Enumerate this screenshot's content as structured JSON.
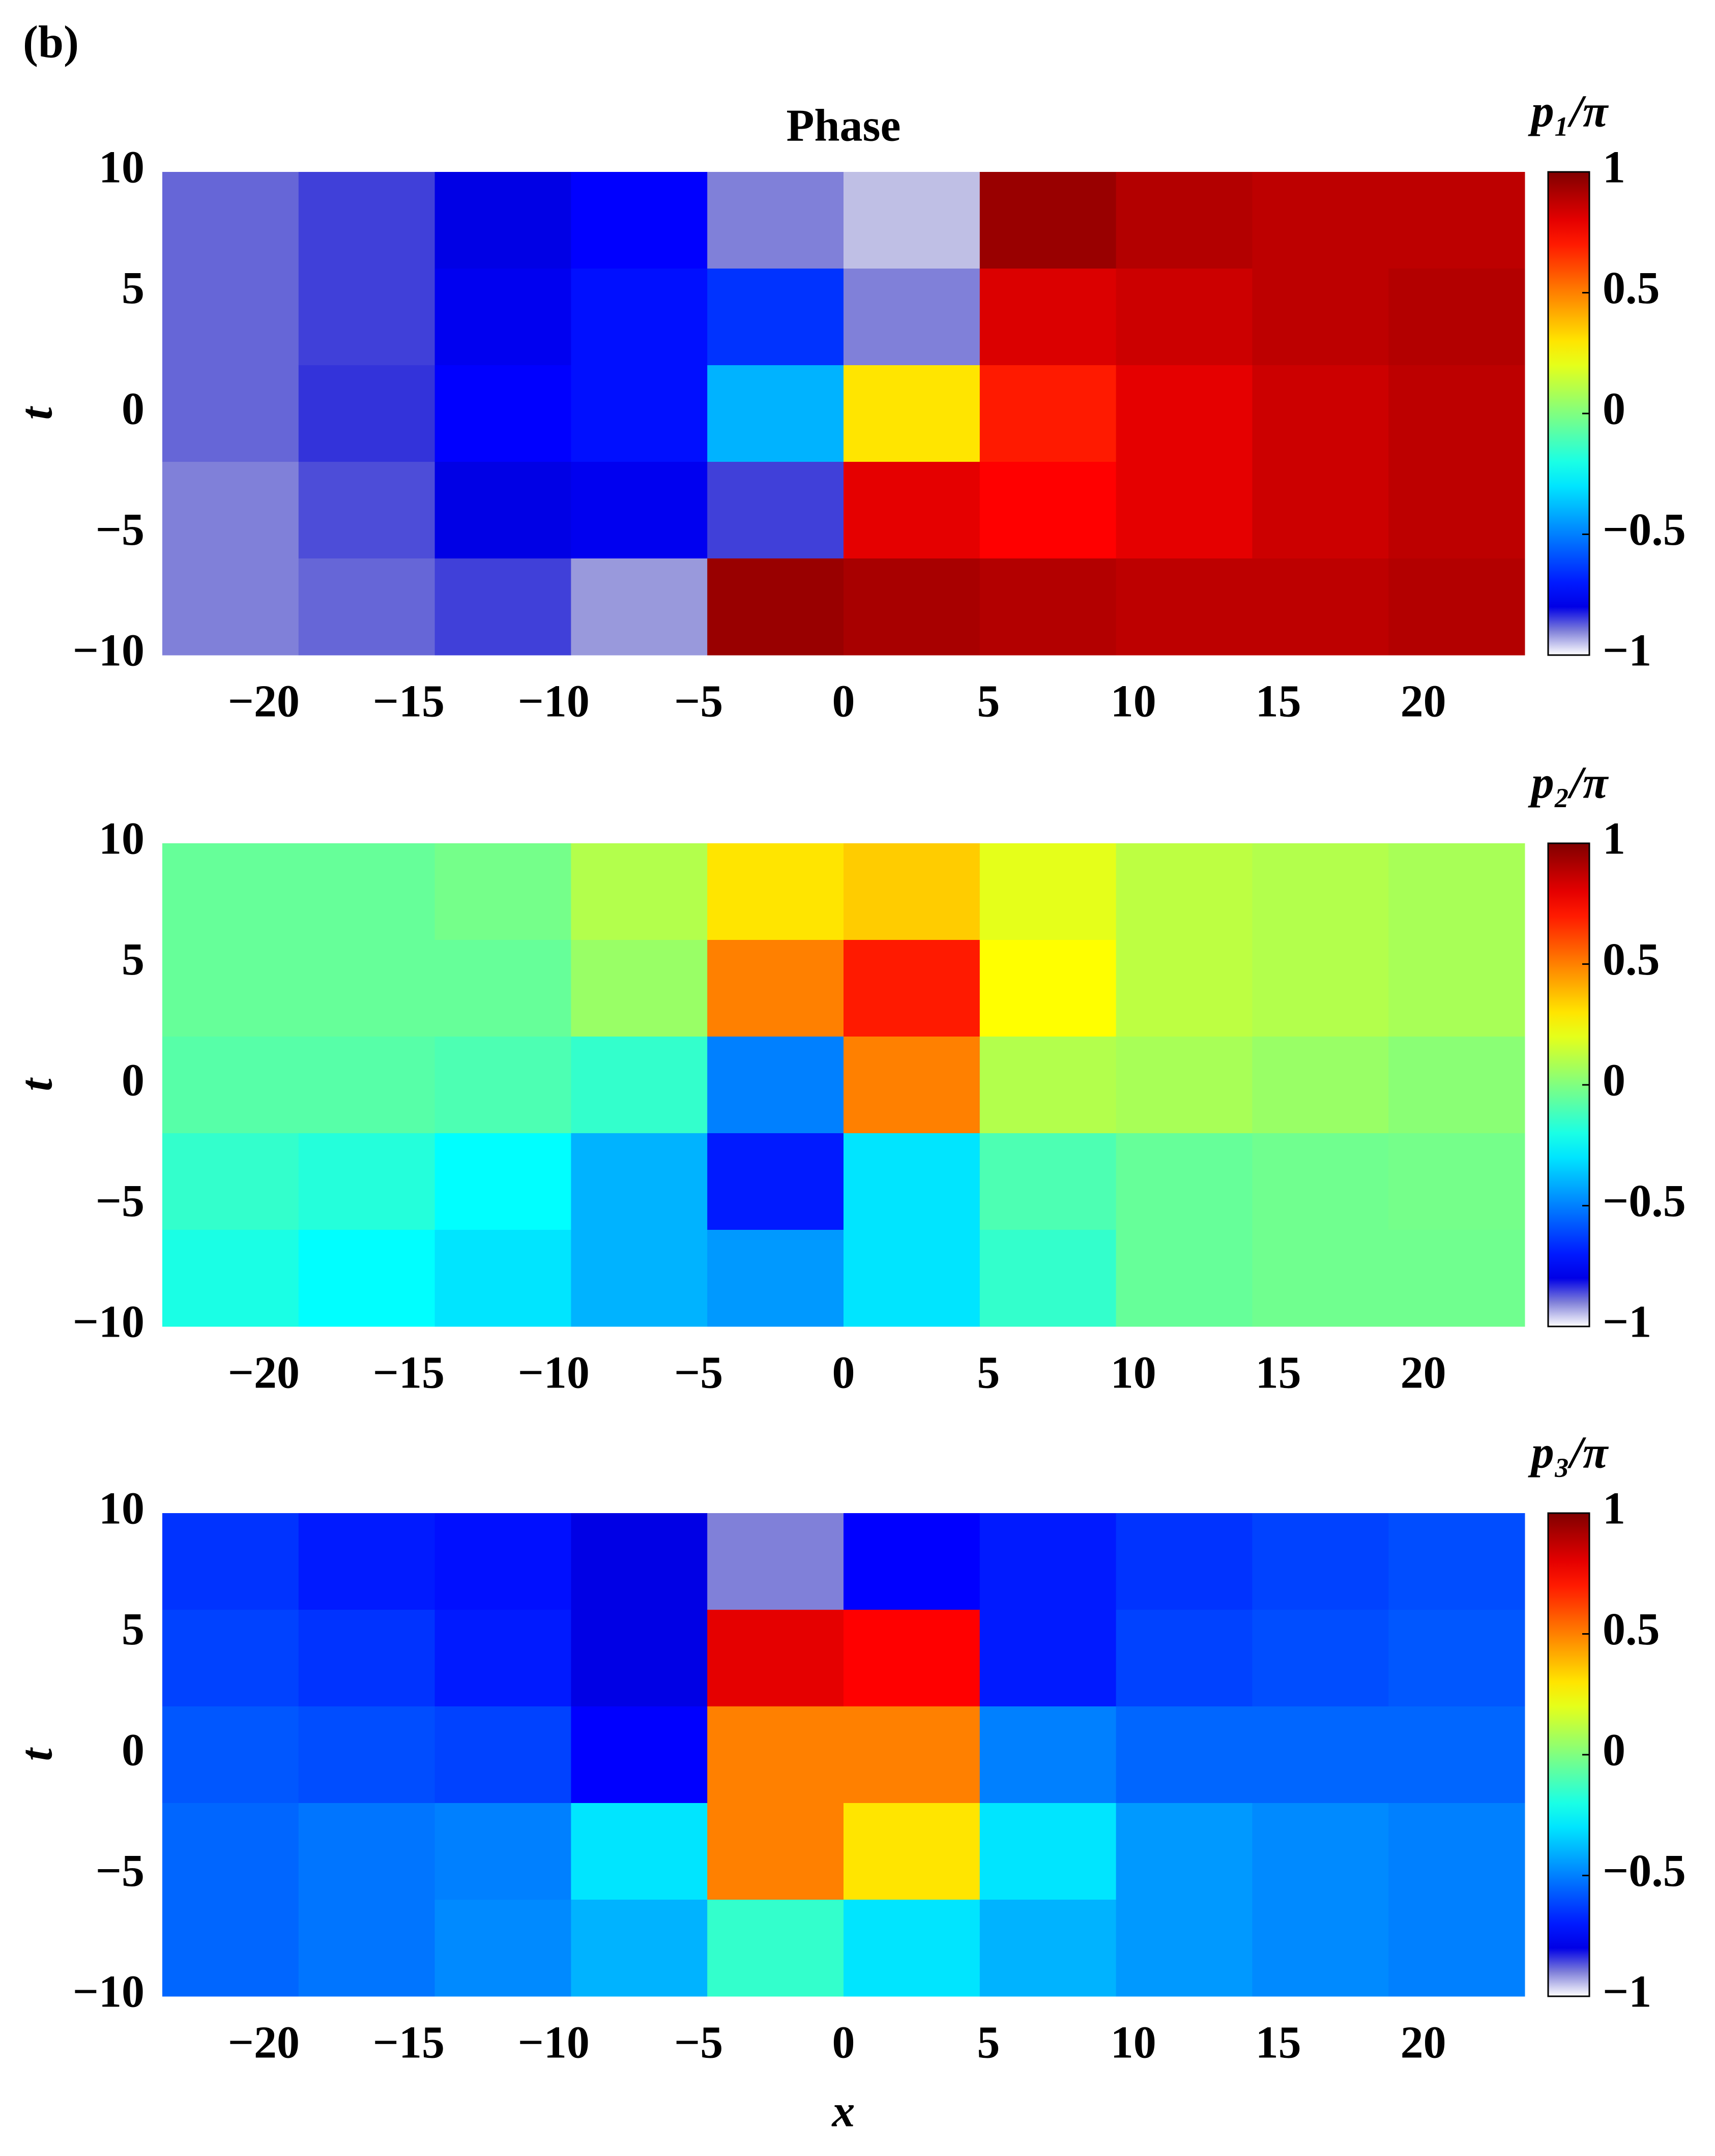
{
  "chart_data": [
    {
      "type": "heatmap",
      "panel_label": "(b)",
      "title": "Phase",
      "ylabel": "t",
      "colorbar_label": "p₁/π",
      "x": [
        -21.15,
        -16.45,
        -11.75,
        -7.05,
        -2.35,
        2.35,
        7.05,
        11.75,
        16.45,
        21.15
      ],
      "y": [
        8,
        4,
        0,
        -4,
        -8
      ],
      "z": [
        [
          -0.88,
          -0.85,
          -0.8,
          -0.75,
          -0.9,
          -0.95,
          0.95,
          0.9,
          0.88,
          0.88
        ],
        [
          -0.88,
          -0.85,
          -0.78,
          -0.72,
          -0.65,
          -0.9,
          0.82,
          0.85,
          0.88,
          0.9
        ],
        [
          -0.88,
          -0.84,
          -0.75,
          -0.72,
          -0.4,
          0.3,
          0.7,
          0.8,
          0.85,
          0.88
        ],
        [
          -0.9,
          -0.86,
          -0.8,
          -0.78,
          -0.85,
          0.8,
          0.75,
          0.8,
          0.85,
          0.88
        ],
        [
          -0.9,
          -0.88,
          -0.85,
          -0.92,
          0.95,
          0.92,
          0.9,
          0.88,
          0.88,
          0.9
        ]
      ],
      "xlim": [
        -23.5,
        23.5
      ],
      "ylim": [
        -10,
        10
      ],
      "clim": [
        -1,
        1
      ],
      "xticks": [
        {
          "value": -20,
          "label": "−20"
        },
        {
          "value": -15,
          "label": "−15"
        },
        {
          "value": -10,
          "label": "−10"
        },
        {
          "value": -5,
          "label": "−5"
        },
        0,
        5,
        10,
        15,
        20
      ],
      "yticks": [
        {
          "value": -10,
          "label": "−10"
        },
        {
          "value": -5,
          "label": "−5"
        },
        0,
        5,
        10
      ],
      "cticks": [
        {
          "value": -1,
          "label": "−1"
        },
        {
          "value": -0.5,
          "label": "−0.5"
        },
        0,
        0.5,
        1
      ]
    },
    {
      "type": "heatmap",
      "ylabel": "t",
      "colorbar_label": "p₂/π",
      "x": [
        -21.15,
        -16.45,
        -11.75,
        -7.05,
        -2.35,
        2.35,
        7.05,
        11.75,
        16.45,
        21.15
      ],
      "y": [
        8,
        4,
        0,
        -4,
        -8
      ],
      "z": [
        [
          -0.05,
          -0.05,
          -0.02,
          0.1,
          0.3,
          0.35,
          0.2,
          0.12,
          0.1,
          0.08
        ],
        [
          -0.05,
          -0.05,
          -0.05,
          0.05,
          0.5,
          0.7,
          0.25,
          0.12,
          0.1,
          0.08
        ],
        [
          -0.08,
          -0.08,
          -0.1,
          -0.15,
          -0.5,
          0.5,
          0.1,
          0.08,
          0.05,
          0.02
        ],
        [
          -0.15,
          -0.18,
          -0.25,
          -0.4,
          -0.7,
          -0.3,
          -0.1,
          -0.05,
          -0.03,
          -0.02
        ],
        [
          -0.2,
          -0.25,
          -0.3,
          -0.4,
          -0.45,
          -0.3,
          -0.15,
          -0.05,
          -0.03,
          -0.03
        ]
      ],
      "xlim": [
        -23.5,
        23.5
      ],
      "ylim": [
        -10,
        10
      ],
      "clim": [
        -1,
        1
      ],
      "xticks": [
        {
          "value": -20,
          "label": "−20"
        },
        {
          "value": -15,
          "label": "−15"
        },
        {
          "value": -10,
          "label": "−10"
        },
        {
          "value": -5,
          "label": "−5"
        },
        0,
        5,
        10,
        15,
        20
      ],
      "yticks": [
        {
          "value": -10,
          "label": "−10"
        },
        {
          "value": -5,
          "label": "−5"
        },
        0,
        5,
        10
      ],
      "cticks": [
        {
          "value": -1,
          "label": "−1"
        },
        {
          "value": -0.5,
          "label": "−0.5"
        },
        0,
        0.5,
        1
      ]
    },
    {
      "type": "heatmap",
      "ylabel": "t",
      "xlabel": "x",
      "colorbar_label": "p₃/π",
      "x": [
        -21.15,
        -16.45,
        -11.75,
        -7.05,
        -2.35,
        2.35,
        7.05,
        11.75,
        16.45,
        21.15
      ],
      "y": [
        8,
        4,
        0,
        -4,
        -8
      ],
      "z": [
        [
          -0.65,
          -0.7,
          -0.72,
          -0.8,
          -0.9,
          -0.75,
          -0.7,
          -0.65,
          -0.62,
          -0.6
        ],
        [
          -0.62,
          -0.65,
          -0.7,
          -0.8,
          0.8,
          0.75,
          -0.7,
          -0.62,
          -0.6,
          -0.58
        ],
        [
          -0.58,
          -0.6,
          -0.62,
          -0.75,
          0.5,
          0.5,
          -0.5,
          -0.55,
          -0.55,
          -0.55
        ],
        [
          -0.55,
          -0.52,
          -0.5,
          -0.3,
          0.5,
          0.3,
          -0.3,
          -0.45,
          -0.48,
          -0.5
        ],
        [
          -0.55,
          -0.52,
          -0.48,
          -0.4,
          -0.15,
          -0.3,
          -0.4,
          -0.45,
          -0.48,
          -0.5
        ]
      ],
      "xlim": [
        -23.5,
        23.5
      ],
      "ylim": [
        -10,
        10
      ],
      "clim": [
        -1,
        1
      ],
      "xticks": [
        {
          "value": -20,
          "label": "−20"
        },
        {
          "value": -15,
          "label": "−15"
        },
        {
          "value": -10,
          "label": "−10"
        },
        {
          "value": -5,
          "label": "−5"
        },
        0,
        5,
        10,
        15,
        20
      ],
      "yticks": [
        {
          "value": -10,
          "label": "−10"
        },
        {
          "value": -5,
          "label": "−5"
        },
        0,
        5,
        10
      ],
      "cticks": [
        {
          "value": -1,
          "label": "−1"
        },
        {
          "value": -0.5,
          "label": "−0.5"
        },
        0,
        0.5,
        1
      ]
    }
  ]
}
